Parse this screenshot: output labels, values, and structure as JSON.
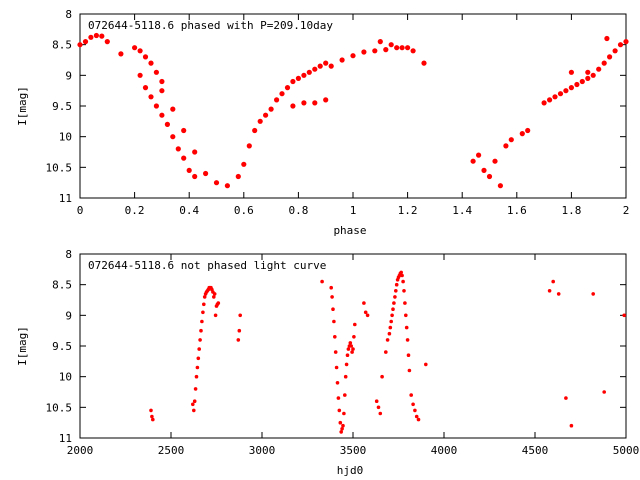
{
  "chart_data": [
    {
      "type": "scatter",
      "title": "072644-5118.6 phased with P=209.10day",
      "xlabel": "phase",
      "ylabel": "I[mag]",
      "xlim": [
        0,
        2
      ],
      "ylim": [
        11,
        8
      ],
      "y_inverted": true,
      "grid": false,
      "marker_color": "#ff0000",
      "xticks": [
        0,
        0.2,
        0.4,
        0.6,
        0.8,
        1,
        1.2,
        1.4,
        1.6,
        1.8,
        2
      ],
      "xtick_labels": [
        "0",
        "0.2",
        "0.4",
        "0.6",
        "0.8",
        "1",
        "1.2",
        "1.4",
        "1.6",
        "1.8",
        "2"
      ],
      "yticks": [
        8,
        8.5,
        9,
        9.5,
        10,
        10.5,
        11
      ],
      "ytick_labels": [
        "8",
        "8.5",
        "9",
        "9.5",
        "10",
        "10.5",
        "11"
      ],
      "x": [
        0.0,
        0.02,
        0.04,
        0.06,
        0.08,
        0.1,
        0.15,
        0.2,
        0.22,
        0.24,
        0.26,
        0.28,
        0.3,
        0.22,
        0.24,
        0.26,
        0.28,
        0.3,
        0.32,
        0.34,
        0.36,
        0.38,
        0.4,
        0.42,
        0.3,
        0.34,
        0.38,
        0.42,
        0.46,
        0.5,
        0.54,
        0.58,
        0.6,
        0.62,
        0.64,
        0.66,
        0.68,
        0.7,
        0.72,
        0.74,
        0.76,
        0.78,
        0.8,
        0.82,
        0.84,
        0.86,
        0.88,
        0.9,
        0.78,
        0.82,
        0.86,
        0.9,
        0.92,
        0.96,
        1.0,
        1.04,
        1.08,
        1.12,
        1.16,
        1.2,
        1.1,
        1.14,
        1.18,
        1.22,
        1.26,
        1.44,
        1.46,
        1.48,
        1.5,
        1.52,
        1.54,
        1.56,
        1.58,
        1.62,
        1.64,
        1.7,
        1.72,
        1.74,
        1.76,
        1.78,
        1.8,
        1.82,
        1.84,
        1.86,
        1.88,
        1.9,
        1.92,
        1.94,
        1.96,
        1.98,
        2.0,
        1.8,
        1.86,
        1.93
      ],
      "y": [
        8.5,
        8.45,
        8.38,
        8.35,
        8.36,
        8.45,
        8.65,
        8.55,
        8.6,
        8.7,
        8.8,
        8.95,
        9.1,
        9.0,
        9.2,
        9.35,
        9.5,
        9.65,
        9.8,
        10.0,
        10.2,
        10.35,
        10.55,
        10.65,
        9.25,
        9.55,
        9.9,
        10.25,
        10.6,
        10.75,
        10.8,
        10.65,
        10.45,
        10.15,
        9.9,
        9.75,
        9.65,
        9.55,
        9.4,
        9.3,
        9.2,
        9.1,
        9.05,
        9.0,
        8.95,
        8.9,
        8.85,
        8.8,
        9.5,
        9.45,
        9.45,
        9.4,
        8.85,
        8.75,
        8.68,
        8.62,
        8.6,
        8.58,
        8.55,
        8.55,
        8.45,
        8.5,
        8.55,
        8.6,
        8.8,
        10.4,
        10.3,
        10.55,
        10.65,
        10.4,
        10.8,
        10.15,
        10.05,
        9.95,
        9.9,
        9.45,
        9.4,
        9.35,
        9.3,
        9.25,
        9.2,
        9.15,
        9.1,
        9.05,
        9.0,
        8.9,
        8.8,
        8.7,
        8.6,
        8.5,
        8.45,
        8.95,
        8.95,
        8.4
      ]
    },
    {
      "type": "scatter",
      "title": "072644-5118.6 not phased light curve",
      "xlabel": "hjd0",
      "ylabel": "I[mag]",
      "xlim": [
        2000,
        5000
      ],
      "ylim": [
        11,
        8
      ],
      "y_inverted": true,
      "grid": false,
      "marker_color": "#ff0000",
      "xticks": [
        2000,
        2500,
        3000,
        3500,
        4000,
        4500,
        5000
      ],
      "xtick_labels": [
        "2000",
        "2500",
        "3000",
        "3500",
        "4000",
        "4500",
        "5000"
      ],
      "yticks": [
        8,
        8.5,
        9,
        9.5,
        10,
        10.5,
        11
      ],
      "ytick_labels": [
        "8",
        "8.5",
        "9",
        "9.5",
        "10",
        "10.5",
        "11"
      ],
      "x": [
        2390,
        2395,
        2400,
        2620,
        2625,
        2630,
        2635,
        2640,
        2645,
        2650,
        2655,
        2660,
        2665,
        2670,
        2675,
        2680,
        2685,
        2690,
        2695,
        2700,
        2705,
        2710,
        2715,
        2720,
        2725,
        2730,
        2735,
        2740,
        2745,
        2750,
        2755,
        2760,
        2870,
        2875,
        2880,
        3330,
        3380,
        3385,
        3390,
        3395,
        3400,
        3405,
        3410,
        3415,
        3420,
        3425,
        3430,
        3435,
        3440,
        3445,
        3450,
        3455,
        3460,
        3465,
        3470,
        3475,
        3480,
        3485,
        3490,
        3495,
        3500,
        3505,
        3510,
        3560,
        3570,
        3580,
        3630,
        3640,
        3650,
        3660,
        3680,
        3690,
        3700,
        3705,
        3710,
        3715,
        3720,
        3725,
        3730,
        3735,
        3740,
        3745,
        3750,
        3755,
        3760,
        3765,
        3770,
        3775,
        3780,
        3785,
        3790,
        3795,
        3800,
        3805,
        3810,
        3820,
        3830,
        3840,
        3850,
        3860,
        3900,
        4580,
        4600,
        4630,
        4820,
        4670,
        4700,
        4880,
        4990
      ],
      "y": [
        10.55,
        10.65,
        10.7,
        10.45,
        10.55,
        10.4,
        10.2,
        10.0,
        9.85,
        9.7,
        9.55,
        9.4,
        9.25,
        9.1,
        8.95,
        8.82,
        8.7,
        8.65,
        8.62,
        8.6,
        8.58,
        8.55,
        8.55,
        8.55,
        8.58,
        8.62,
        8.7,
        8.65,
        9.0,
        8.85,
        8.82,
        8.8,
        9.4,
        9.25,
        9.0,
        8.45,
        8.55,
        8.7,
        8.9,
        9.1,
        9.35,
        9.6,
        9.85,
        10.1,
        10.35,
        10.55,
        10.75,
        10.9,
        10.85,
        10.8,
        10.6,
        10.3,
        10.0,
        9.8,
        9.65,
        9.55,
        9.5,
        9.45,
        9.5,
        9.6,
        9.55,
        9.35,
        9.15,
        8.8,
        8.95,
        9.0,
        10.4,
        10.5,
        10.6,
        10.0,
        9.6,
        9.4,
        9.3,
        9.2,
        9.1,
        9.0,
        8.9,
        8.8,
        8.7,
        8.6,
        8.5,
        8.42,
        8.38,
        8.35,
        8.32,
        8.3,
        8.35,
        8.45,
        8.6,
        8.8,
        9.0,
        9.2,
        9.4,
        9.65,
        9.9,
        10.3,
        10.45,
        10.55,
        10.65,
        10.7,
        9.8,
        8.6,
        8.45,
        8.65,
        8.65,
        10.35,
        10.8,
        10.25,
        9.0
      ]
    }
  ]
}
